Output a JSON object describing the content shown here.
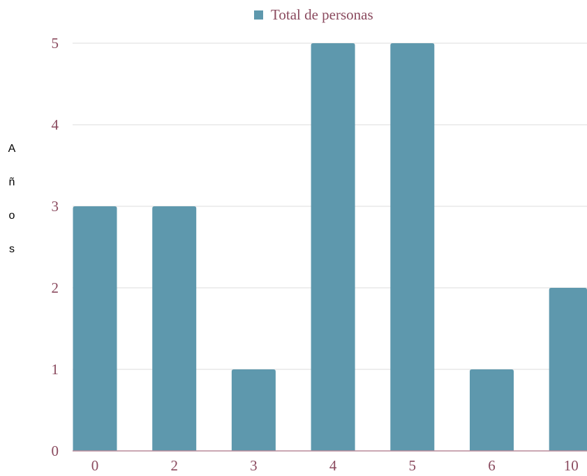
{
  "chart_data": {
    "type": "bar",
    "categories": [
      "0",
      "2",
      "3",
      "4",
      "5",
      "6",
      "10"
    ],
    "series": [
      {
        "name": "Total de personas",
        "values": [
          3,
          3,
          1,
          5,
          5,
          1,
          2
        ],
        "color": "#5e98ad"
      }
    ],
    "title": "",
    "xlabel": "",
    "ylabel": "Años",
    "ylim": [
      0,
      5
    ],
    "yticks": [
      "0",
      "1",
      "2",
      "3",
      "4",
      "5"
    ],
    "grid": true,
    "legend_position": "top-center",
    "colors": {
      "bar": "#5e98ad",
      "text": "#8a4a5e",
      "grid": "#dcdcdc",
      "axis": "#b98a9a"
    }
  }
}
